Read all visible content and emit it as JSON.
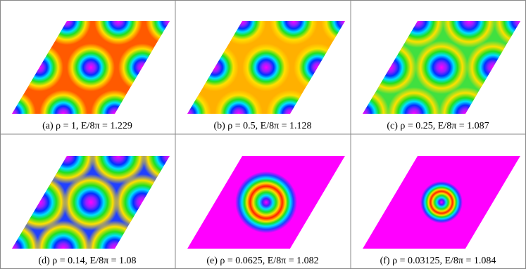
{
  "panels": [
    {
      "caption": "(a) ρ = 1, E/8π = 1.229"
    },
    {
      "caption": "(b) ρ = 0.5, E/8π = 1.128"
    },
    {
      "caption": "(c) ρ = 0.25, E/8π = 1.087"
    },
    {
      "caption": "(d) ρ = 0.14, E/8π = 1.08"
    },
    {
      "caption": "(e) ρ = 0.0625, E/8π = 1.082"
    },
    {
      "caption": "(f) ρ = 0.03125, E/8π = 1.084"
    }
  ]
}
